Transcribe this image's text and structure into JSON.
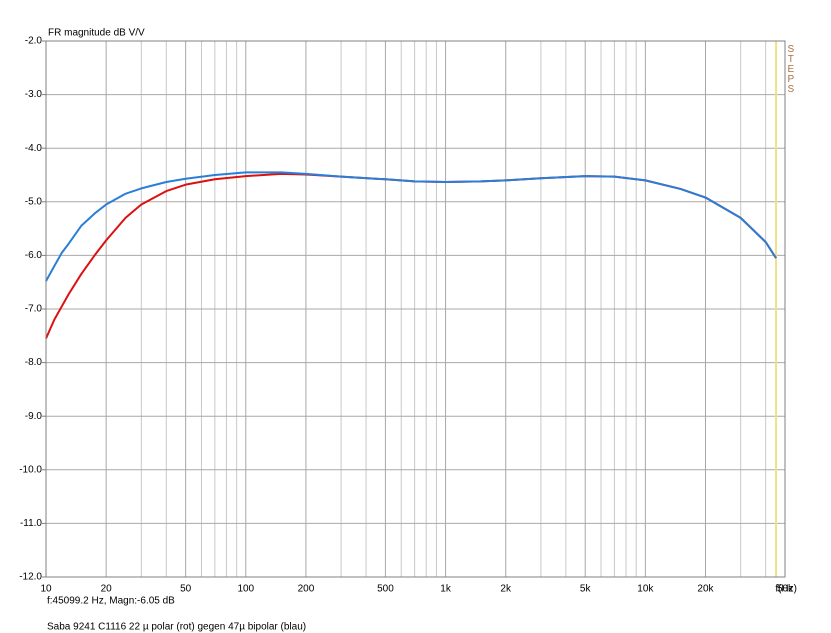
{
  "chart_data": {
    "type": "line",
    "title": "FR magnitude dB V/V",
    "xlabel": "f(Hz)",
    "cursor_text": "f:45099.2 Hz, Magn:-6.05 dB",
    "caption": "Saba 9241 C1116 22 µ polar (rot) gegen 47µ bipolar (blau)",
    "side_label": "STEPS",
    "cursor_x": 45099.2,
    "cursor_color": "#f0e08c",
    "x_log": true,
    "grid": true,
    "xlim": [
      10,
      50000
    ],
    "ylim": [
      -12,
      -2
    ],
    "xticks": [
      10,
      20,
      50,
      100,
      200,
      500,
      {
        "value": 1000,
        "label": "1k"
      },
      {
        "value": 2000,
        "label": "2k"
      },
      {
        "value": 5000,
        "label": "5k"
      },
      {
        "value": 10000,
        "label": "10k"
      },
      {
        "value": 20000,
        "label": "20k"
      },
      {
        "value": 50000,
        "label": "50k"
      }
    ],
    "minor_xticks": [
      30,
      40,
      60,
      70,
      80,
      90,
      300,
      400,
      600,
      700,
      800,
      900,
      3000,
      4000,
      6000,
      7000,
      8000,
      9000,
      30000,
      40000
    ],
    "yticks": [
      {
        "value": -2,
        "label": "-2.0"
      },
      {
        "value": -3,
        "label": "-3.0"
      },
      {
        "value": -4,
        "label": "-4.0"
      },
      {
        "value": -5,
        "label": "-5.0"
      },
      {
        "value": -6,
        "label": "-6.0"
      },
      {
        "value": -7,
        "label": "-7.0"
      },
      {
        "value": -8,
        "label": "-8.0"
      },
      {
        "value": -9,
        "label": "-9.0"
      },
      {
        "value": -10,
        "label": "-10.0"
      },
      {
        "value": -11,
        "label": "-11.0"
      },
      {
        "value": -12,
        "label": "-12.0"
      }
    ],
    "x": [
      10,
      11,
      12,
      13,
      15,
      17.5,
      20,
      25,
      30,
      40,
      50,
      70,
      100,
      150,
      200,
      300,
      500,
      700,
      1000,
      1500,
      2000,
      3000,
      5000,
      7000,
      10000,
      15000,
      20000,
      30000,
      40000,
      45099.2
    ],
    "series": [
      {
        "color": "#dd1010",
        "values": [
          -7.55,
          -7.2,
          -6.95,
          -6.72,
          -6.35,
          -6.0,
          -5.72,
          -5.3,
          -5.05,
          -4.8,
          -4.68,
          -4.58,
          -4.52,
          -4.48,
          -4.49,
          -4.53,
          -4.58,
          -4.62,
          -4.63,
          -4.62,
          -4.6,
          -4.56,
          -4.52,
          -4.53,
          -4.6,
          -4.76,
          -4.92,
          -5.3,
          -5.75,
          -6.05
        ]
      },
      {
        "color": "#2a7ed8",
        "values": [
          -6.48,
          -6.2,
          -5.95,
          -5.78,
          -5.45,
          -5.22,
          -5.05,
          -4.85,
          -4.75,
          -4.63,
          -4.57,
          -4.5,
          -4.45,
          -4.45,
          -4.48,
          -4.53,
          -4.58,
          -4.62,
          -4.63,
          -4.62,
          -4.6,
          -4.56,
          -4.52,
          -4.53,
          -4.6,
          -4.76,
          -4.92,
          -5.3,
          -5.75,
          -6.05
        ]
      }
    ]
  }
}
